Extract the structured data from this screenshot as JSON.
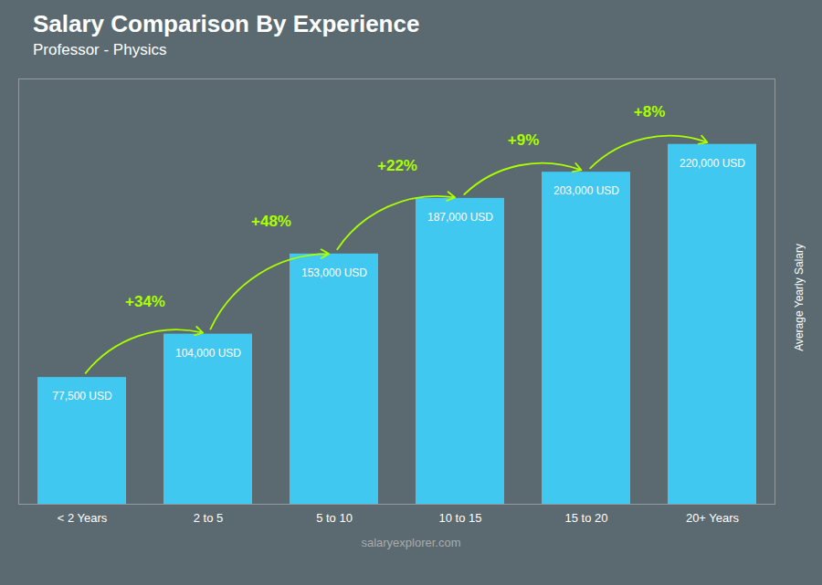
{
  "chart_data": {
    "type": "bar",
    "title": "Salary Comparison By Experience",
    "subtitle": "Professor - Physics",
    "ylabel": "Average Yearly Salary",
    "caption": "salaryexplorer.com",
    "categories": [
      "< 2 Years",
      "2 to 5",
      "5 to 10",
      "10 to 15",
      "15 to 20",
      "20+ Years"
    ],
    "values": [
      77500,
      104000,
      153000,
      187000,
      203000,
      220000
    ],
    "value_labels": [
      "77,500 USD",
      "104,000 USD",
      "153,000 USD",
      "187,000 USD",
      "203,000 USD",
      "220,000 USD"
    ],
    "data_labels": true,
    "color": "#40C8F0",
    "annotations": [
      {
        "text": "+34%",
        "from": "< 2 Years",
        "to": "2 to 5",
        "color": "#aaff00"
      },
      {
        "text": "+48%",
        "from": "2 to 5",
        "to": "5 to 10",
        "color": "#aaff00"
      },
      {
        "text": "+22%",
        "from": "5 to 10",
        "to": "10 to 15",
        "color": "#aaff00"
      },
      {
        "text": "+9%",
        "from": "10 to 15",
        "to": "15 to 20",
        "color": "#aaff00"
      },
      {
        "text": "+8%",
        "from": "15 to 20",
        "to": "20+ Years",
        "color": "#aaff00"
      }
    ],
    "ylim": [
      0,
      260000
    ],
    "tick_labels": "x",
    "grid": false
  }
}
